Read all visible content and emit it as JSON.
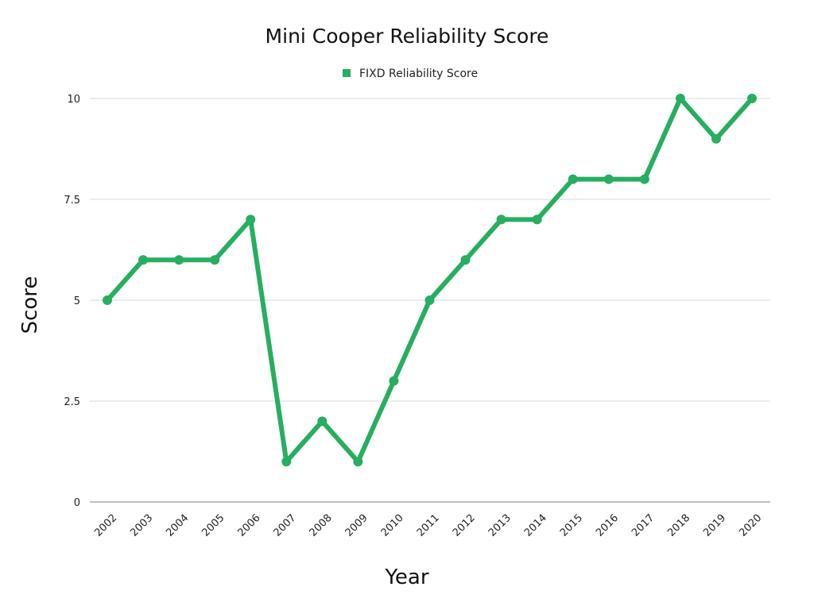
{
  "chart_data": {
    "type": "line",
    "title": "Mini Cooper Reliability Score",
    "xlabel": "Year",
    "ylabel": "Score",
    "categories": [
      "2002",
      "2003",
      "2004",
      "2005",
      "2006",
      "2007",
      "2008",
      "2009",
      "2010",
      "2011",
      "2012",
      "2013",
      "2014",
      "2015",
      "2016",
      "2017",
      "2018",
      "2019",
      "2020"
    ],
    "series": [
      {
        "name": "FIXD Reliability Score",
        "values": [
          5,
          6,
          6,
          6,
          7,
          1,
          2,
          1,
          3,
          5,
          6,
          7,
          7,
          8,
          8,
          8,
          10,
          9,
          10
        ],
        "color": "#27ae60"
      }
    ],
    "ylim": [
      0,
      10
    ],
    "yticks": [
      0,
      2.5,
      5,
      7.5,
      10
    ],
    "ytick_labels": [
      "0",
      "2.5",
      "5",
      "7.5",
      "10"
    ],
    "grid": true,
    "legend_position": "top-center"
  }
}
